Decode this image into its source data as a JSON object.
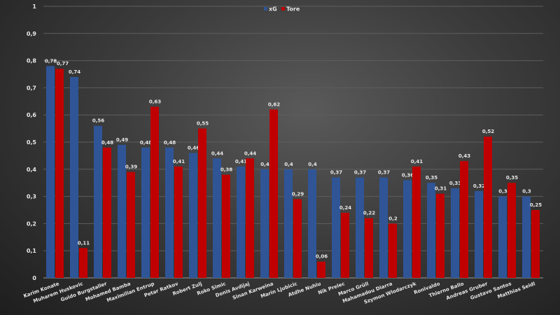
{
  "chart_data": {
    "type": "bar",
    "title": "",
    "xlabel": "",
    "ylabel": "",
    "ylim": [
      0,
      1
    ],
    "yticks": [
      "0",
      "0,1",
      "0,2",
      "0,3",
      "0,4",
      "0,5",
      "0,6",
      "0,7",
      "0,8",
      "0,9",
      "1"
    ],
    "grid": true,
    "legend": "top-center",
    "categories": [
      "Karim Konate",
      "Muharem Huskovic",
      "Guido Burgstaller",
      "Mohamed Bamba",
      "Maximilian Entrup",
      "Petar Ratkov",
      "Robert Zulj",
      "Roko Simic",
      "Donis Avdijaj",
      "Sinan Karweina",
      "Marin Ljubicic",
      "Atdhe Nuhiu",
      "Nik Prelec",
      "Marco Grüll",
      "Mahamadou Diarra",
      "Szymon Wlodarczyk",
      "Ronivaldo",
      "Thierno Ballo",
      "Andreas Gruber",
      "Gustavo Santos",
      "Matthias Seidl"
    ],
    "series": [
      {
        "name": "xG",
        "color": "#2f5597",
        "values": [
          0.78,
          0.74,
          0.56,
          0.49,
          0.48,
          0.48,
          0.46,
          0.44,
          0.41,
          0.4,
          0.4,
          0.4,
          0.37,
          0.37,
          0.37,
          0.36,
          0.35,
          0.33,
          0.32,
          0.3,
          0.3
        ]
      },
      {
        "name": "Tore",
        "color": "#c00000",
        "values": [
          0.77,
          0.11,
          0.48,
          0.39,
          0.63,
          0.41,
          0.55,
          0.38,
          0.44,
          0.62,
          0.29,
          0.06,
          0.24,
          0.22,
          0.2,
          0.41,
          0.31,
          0.43,
          0.52,
          0.35,
          0.25
        ]
      }
    ]
  }
}
